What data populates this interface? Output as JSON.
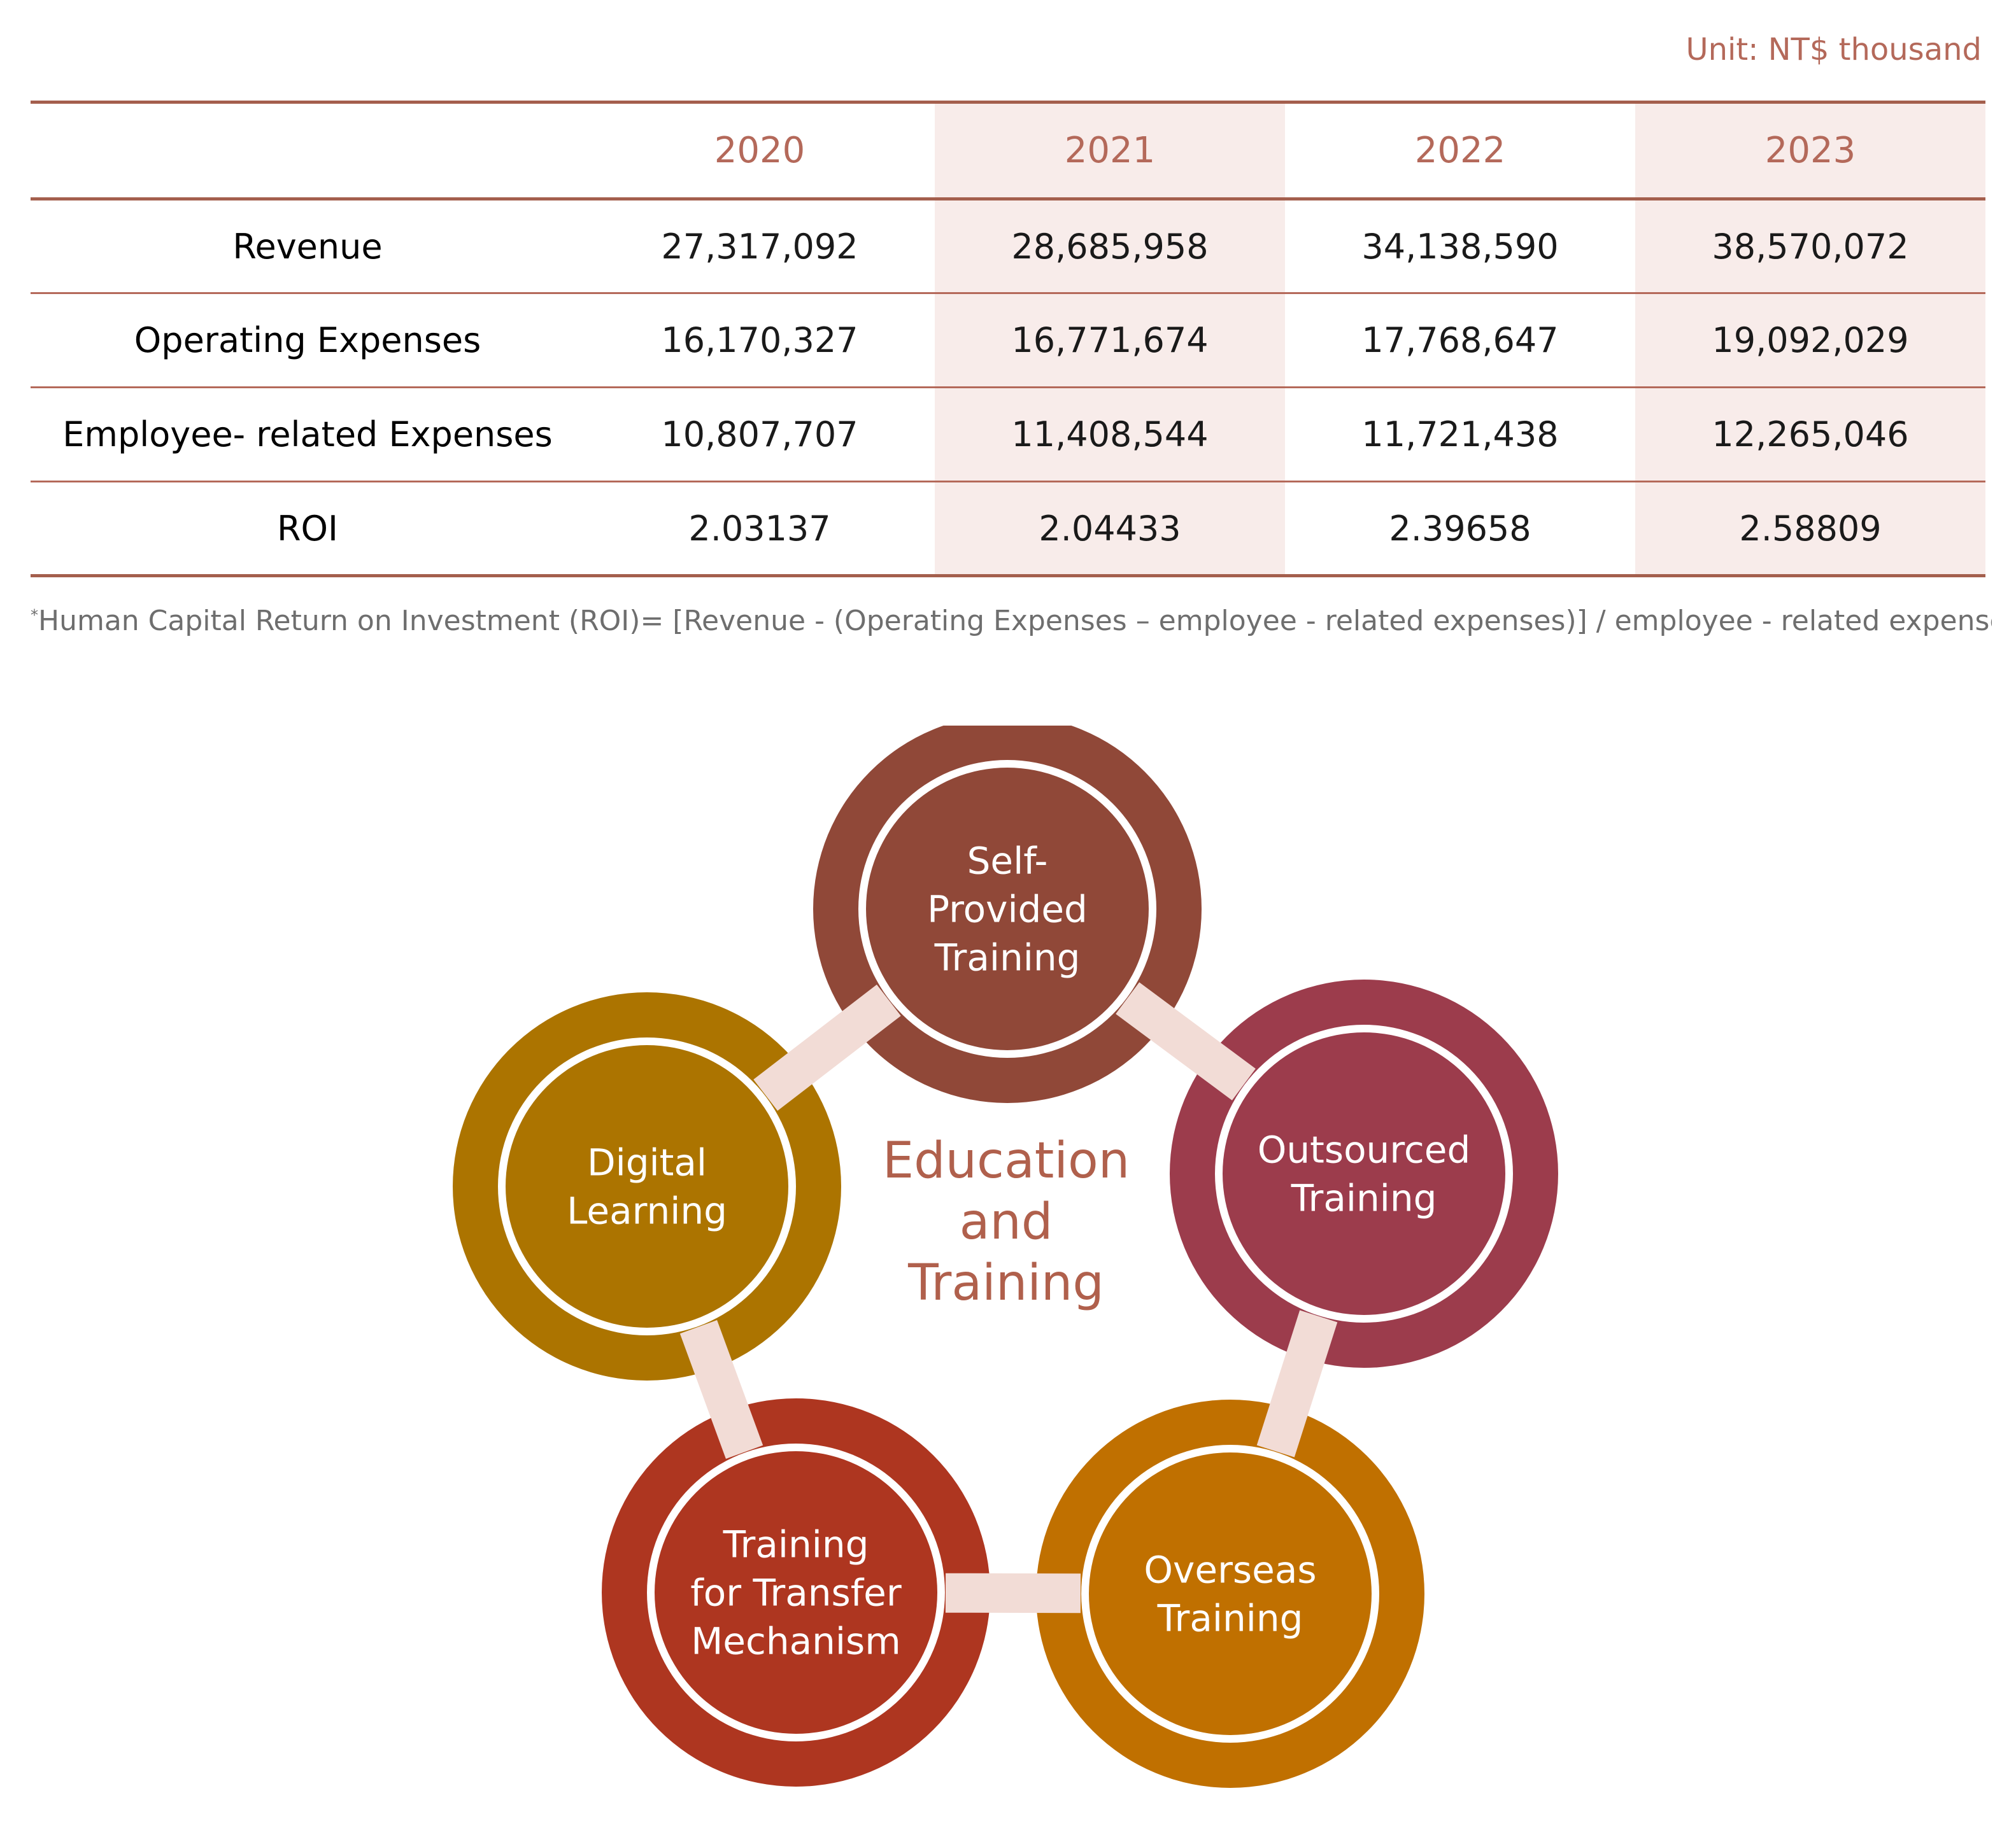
{
  "unit_label": "Unit: NT$ thousand",
  "table": {
    "columns": [
      "2020",
      "2021",
      "2022",
      "2023"
    ],
    "rows": [
      {
        "label": "Revenue",
        "values": [
          "27,317,092",
          "28,685,958",
          "34,138,590",
          "38,570,072"
        ]
      },
      {
        "label": "Operating Expenses",
        "values": [
          "16,170,327",
          "16,771,674",
          "17,768,647",
          "19,092,029"
        ]
      },
      {
        "label": "Employee- related Expenses",
        "values": [
          "10,807,707",
          "11,408,544",
          "11,721,438",
          "12,265,046"
        ]
      },
      {
        "label": "ROI",
        "values": [
          "2.03137",
          "2.04433",
          "2.39658",
          "2.58809"
        ]
      }
    ]
  },
  "footnote": {
    "marker": "*",
    "text": "Human Capital Return on Investment (ROI)= [Revenue - (Operating Expenses – employee - related expenses)] / employee - related expenses"
  },
  "diagram": {
    "center_label": [
      "Education",
      "and",
      "Training"
    ],
    "nodes": [
      {
        "lines": [
          "Self-",
          "Provided",
          "Training"
        ],
        "color": "#904838"
      },
      {
        "lines": [
          "Outsourced",
          "Training"
        ],
        "color": "#9c3c4c"
      },
      {
        "lines": [
          "Overseas",
          "Training"
        ],
        "color": "#c07000"
      },
      {
        "lines": [
          "Training",
          "for Transfer",
          "Mechanism"
        ],
        "color": "#ae3620"
      },
      {
        "lines": [
          "Digital",
          "Learning"
        ],
        "color": "#ac7400"
      }
    ],
    "connector_color": "#f2dcd6",
    "center_color": "#b0604c"
  }
}
